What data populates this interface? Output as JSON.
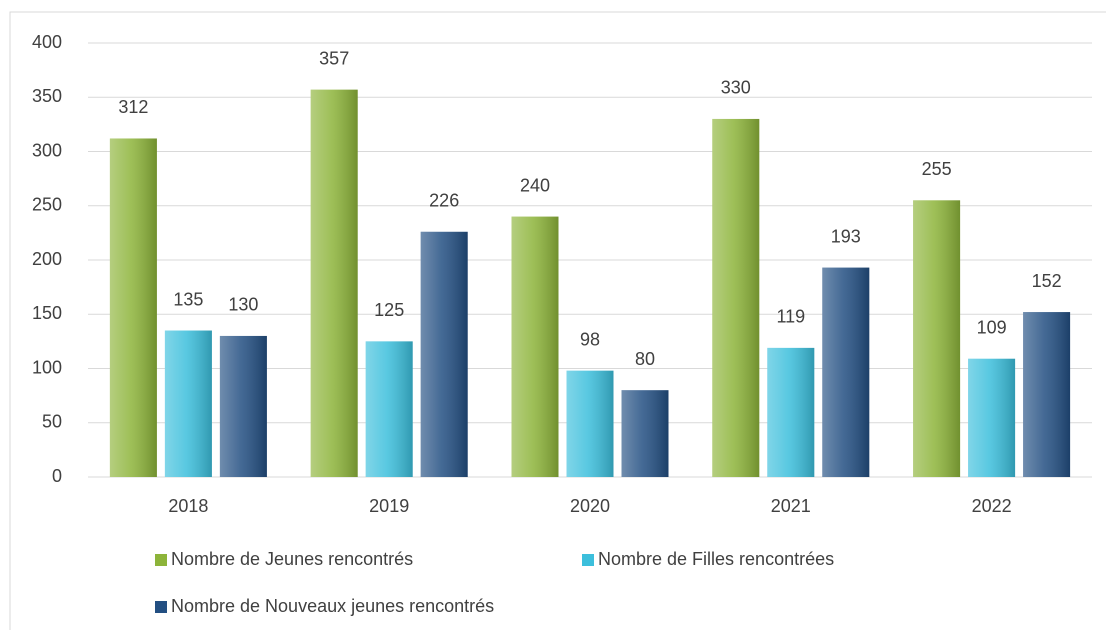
{
  "chart_data": {
    "type": "bar",
    "categories": [
      "2018",
      "2019",
      "2020",
      "2021",
      "2022"
    ],
    "series": [
      {
        "name": "Nombre de Jeunes rencontrés",
        "color": "#8db43a",
        "values": [
          312,
          357,
          240,
          330,
          255
        ]
      },
      {
        "name": "Nombre de Filles rencontrées",
        "color": "#3cbfdc",
        "values": [
          135,
          125,
          98,
          119,
          109
        ]
      },
      {
        "name": "Nombre de Nouveaux jeunes rencontrés",
        "color": "#234f82",
        "values": [
          130,
          226,
          80,
          193,
          152
        ]
      }
    ],
    "ylim": [
      0,
      400
    ],
    "yticks": [
      0,
      50,
      100,
      150,
      200,
      250,
      300,
      350,
      400
    ],
    "grid": true,
    "legend": "bottom",
    "data_labels": true
  }
}
